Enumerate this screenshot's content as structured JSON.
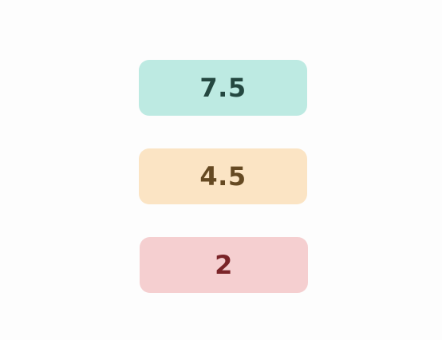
{
  "tiles": [
    {
      "value": "7.5",
      "background": "#bdeae2",
      "text_color": "#244740"
    },
    {
      "value": "4.5",
      "background": "#fbe4c4",
      "text_color": "#654922"
    },
    {
      "value": "2",
      "background": "#f5cfd0",
      "text_color": "#7a2428"
    }
  ]
}
